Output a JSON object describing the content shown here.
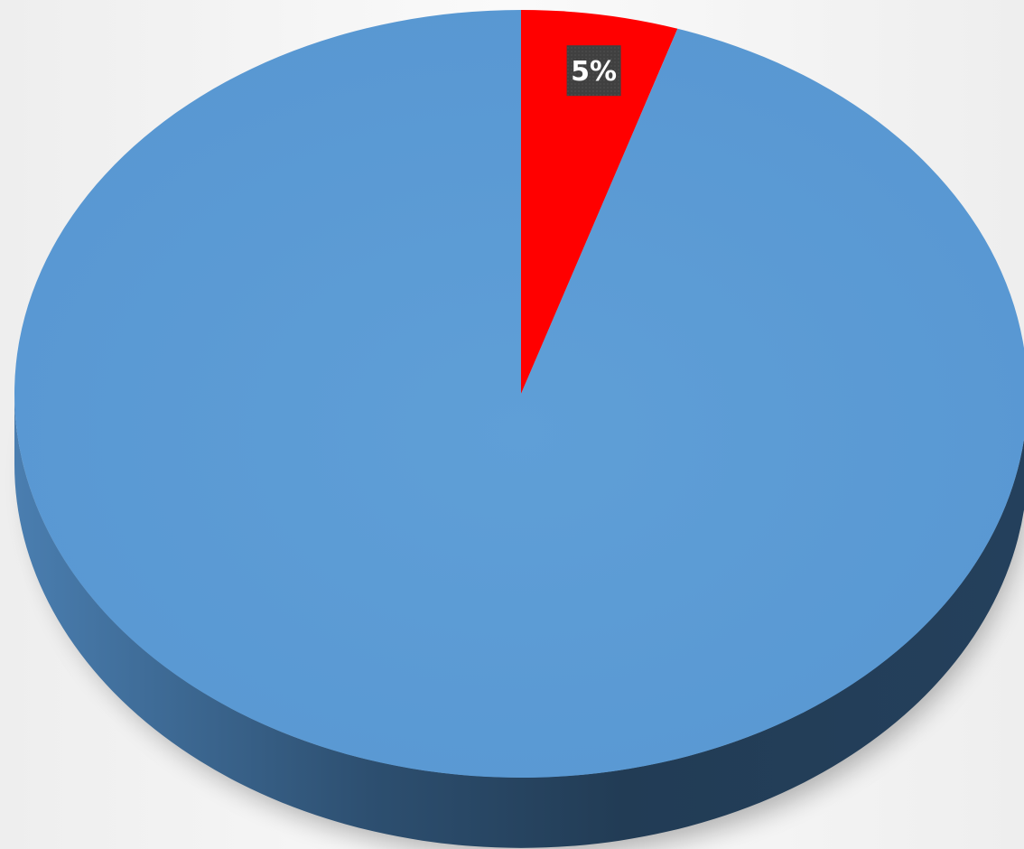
{
  "chart_data": {
    "type": "pie",
    "style": "3d",
    "start_angle_deg": 0,
    "direction": "clockwise",
    "legend": "none",
    "slices": [
      {
        "value": 5,
        "label": "5%",
        "color": "#ff0000"
      },
      {
        "value": 95,
        "label": "",
        "color": "#5b9bd5"
      }
    ]
  }
}
